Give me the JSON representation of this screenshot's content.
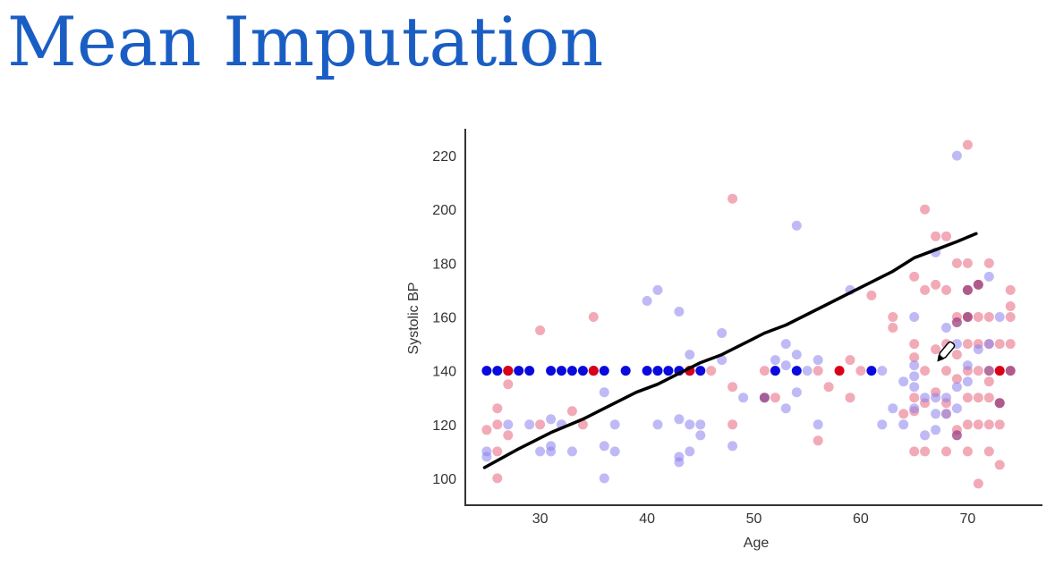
{
  "title": "Mean Imputation",
  "chart_data": {
    "type": "scatter",
    "xlabel": "Age",
    "ylabel": "Systolic BP",
    "xlim": [
      23,
      77
    ],
    "ylim": [
      90,
      230
    ],
    "xticks": [
      30,
      40,
      50,
      60,
      70
    ],
    "yticks": [
      100,
      120,
      140,
      160,
      180,
      200,
      220
    ],
    "grid": false,
    "colors": {
      "observed_pink": "#e8647c",
      "observed_lilac": "#8b82ee",
      "imputed_blue": "#0a0adc",
      "imputed_red": "#d90018",
      "trend_line": "#000000"
    },
    "observed_pink": [
      [
        25,
        118
      ],
      [
        26,
        126
      ],
      [
        26,
        120
      ],
      [
        26,
        110
      ],
      [
        26,
        100
      ],
      [
        27,
        135
      ],
      [
        27,
        116
      ],
      [
        30,
        155
      ],
      [
        30,
        120
      ],
      [
        33,
        125
      ],
      [
        34,
        120
      ],
      [
        35,
        160
      ],
      [
        44,
        140
      ],
      [
        46,
        140
      ],
      [
        48,
        204
      ],
      [
        48,
        134
      ],
      [
        48,
        120
      ],
      [
        51,
        140
      ],
      [
        52,
        130
      ],
      [
        56,
        140
      ],
      [
        56,
        114
      ],
      [
        57,
        134
      ],
      [
        59,
        144
      ],
      [
        59,
        130
      ],
      [
        60,
        140
      ],
      [
        61,
        168
      ],
      [
        63,
        160
      ],
      [
        63,
        156
      ],
      [
        64,
        124
      ],
      [
        65,
        175
      ],
      [
        65,
        150
      ],
      [
        65,
        145
      ],
      [
        65,
        130
      ],
      [
        65,
        125
      ],
      [
        65,
        110
      ],
      [
        66,
        200
      ],
      [
        66,
        170
      ],
      [
        66,
        140
      ],
      [
        66,
        128
      ],
      [
        66,
        110
      ],
      [
        67,
        190
      ],
      [
        67,
        172
      ],
      [
        67,
        148
      ],
      [
        67,
        132
      ],
      [
        68,
        190
      ],
      [
        68,
        170
      ],
      [
        68,
        150
      ],
      [
        68,
        140
      ],
      [
        68,
        128
      ],
      [
        68,
        124
      ],
      [
        68,
        110
      ],
      [
        69,
        180
      ],
      [
        69,
        160
      ],
      [
        69,
        146
      ],
      [
        69,
        137
      ],
      [
        69,
        118
      ],
      [
        70,
        224
      ],
      [
        70,
        180
      ],
      [
        70,
        170
      ],
      [
        70,
        160
      ],
      [
        70,
        150
      ],
      [
        70,
        140
      ],
      [
        70,
        130
      ],
      [
        70,
        120
      ],
      [
        70,
        110
      ],
      [
        71,
        172
      ],
      [
        71,
        160
      ],
      [
        71,
        150
      ],
      [
        71,
        140
      ],
      [
        71,
        130
      ],
      [
        71,
        120
      ],
      [
        71,
        98
      ],
      [
        72,
        180
      ],
      [
        72,
        160
      ],
      [
        72,
        150
      ],
      [
        72,
        136
      ],
      [
        72,
        130
      ],
      [
        72,
        120
      ],
      [
        72,
        110
      ],
      [
        73,
        150
      ],
      [
        73,
        140
      ],
      [
        73,
        128
      ],
      [
        73,
        120
      ],
      [
        73,
        105
      ],
      [
        74,
        170
      ],
      [
        74,
        164
      ],
      [
        74,
        160
      ],
      [
        74,
        150
      ],
      [
        74,
        140
      ]
    ],
    "observed_lilac": [
      [
        25,
        110
      ],
      [
        25,
        108
      ],
      [
        27,
        120
      ],
      [
        29,
        120
      ],
      [
        30,
        110
      ],
      [
        31,
        122
      ],
      [
        31,
        112
      ],
      [
        31,
        110
      ],
      [
        32,
        120
      ],
      [
        33,
        110
      ],
      [
        36,
        132
      ],
      [
        36,
        112
      ],
      [
        36,
        100
      ],
      [
        37,
        120
      ],
      [
        37,
        110
      ],
      [
        38,
        140
      ],
      [
        40,
        166
      ],
      [
        41,
        170
      ],
      [
        41,
        140
      ],
      [
        41,
        120
      ],
      [
        43,
        162
      ],
      [
        43,
        122
      ],
      [
        43,
        108
      ],
      [
        43,
        106
      ],
      [
        44,
        146
      ],
      [
        44,
        120
      ],
      [
        44,
        110
      ],
      [
        45,
        120
      ],
      [
        45,
        116
      ],
      [
        47,
        154
      ],
      [
        47,
        144
      ],
      [
        48,
        112
      ],
      [
        49,
        130
      ],
      [
        51,
        130
      ],
      [
        52,
        144
      ],
      [
        52,
        140
      ],
      [
        53,
        150
      ],
      [
        53,
        142
      ],
      [
        53,
        126
      ],
      [
        54,
        194
      ],
      [
        54,
        146
      ],
      [
        54,
        132
      ],
      [
        55,
        140
      ],
      [
        56,
        144
      ],
      [
        56,
        120
      ],
      [
        59,
        170
      ],
      [
        62,
        140
      ],
      [
        62,
        120
      ],
      [
        63,
        126
      ],
      [
        64,
        136
      ],
      [
        64,
        120
      ],
      [
        65,
        160
      ],
      [
        65,
        142
      ],
      [
        65,
        138
      ],
      [
        65,
        134
      ],
      [
        65,
        126
      ],
      [
        66,
        130
      ],
      [
        66,
        116
      ],
      [
        67,
        184
      ],
      [
        67,
        130
      ],
      [
        67,
        124
      ],
      [
        67,
        118
      ],
      [
        68,
        156
      ],
      [
        68,
        130
      ],
      [
        68,
        124
      ],
      [
        69,
        220
      ],
      [
        69,
        150
      ],
      [
        69,
        134
      ],
      [
        69,
        126
      ],
      [
        70,
        142
      ],
      [
        70,
        136
      ],
      [
        71,
        148
      ],
      [
        72,
        175
      ],
      [
        72,
        150
      ],
      [
        73,
        160
      ]
    ],
    "overlap_purple": [
      [
        51,
        130
      ],
      [
        69,
        158
      ],
      [
        70,
        160
      ],
      [
        70,
        170
      ],
      [
        71,
        172
      ],
      [
        69,
        116
      ],
      [
        72,
        140
      ],
      [
        74,
        140
      ],
      [
        73,
        128
      ]
    ],
    "imputed_blue": [
      [
        25,
        140
      ],
      [
        26,
        140
      ],
      [
        27,
        140
      ],
      [
        28,
        140
      ],
      [
        29,
        140
      ],
      [
        31,
        140
      ],
      [
        32,
        140
      ],
      [
        33,
        140
      ],
      [
        34,
        140
      ],
      [
        35,
        140
      ],
      [
        36,
        140
      ],
      [
        38,
        140
      ],
      [
        40,
        140
      ],
      [
        41,
        140
      ],
      [
        42,
        140
      ],
      [
        43,
        140
      ],
      [
        44,
        140
      ],
      [
        45,
        140
      ],
      [
        52,
        140
      ],
      [
        54,
        140
      ],
      [
        61,
        140
      ]
    ],
    "imputed_red": [
      [
        27,
        140
      ],
      [
        35,
        140
      ],
      [
        44,
        140
      ],
      [
        58,
        140
      ],
      [
        73,
        140
      ]
    ],
    "trend_line": [
      [
        24.8,
        104
      ],
      [
        28,
        111
      ],
      [
        31,
        117
      ],
      [
        34,
        122
      ],
      [
        36.5,
        127
      ],
      [
        39,
        132
      ],
      [
        41,
        135
      ],
      [
        43,
        139
      ],
      [
        45,
        143
      ],
      [
        47,
        146
      ],
      [
        49,
        150
      ],
      [
        51,
        154
      ],
      [
        53,
        157
      ],
      [
        55,
        161
      ],
      [
        57,
        165
      ],
      [
        59,
        169
      ],
      [
        61,
        173
      ],
      [
        63,
        177
      ],
      [
        65,
        182
      ],
      [
        67,
        185
      ],
      [
        69,
        188
      ],
      [
        70.8,
        191
      ]
    ]
  }
}
